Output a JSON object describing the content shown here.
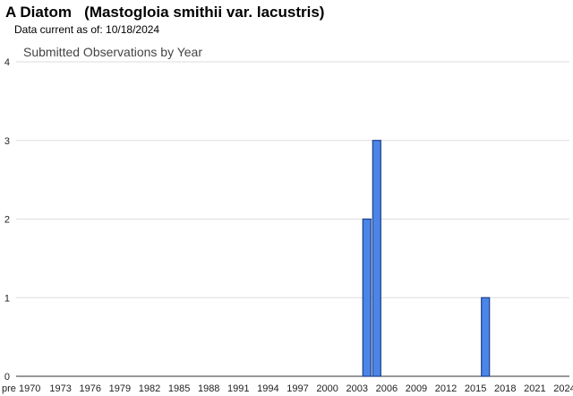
{
  "header": {
    "title": "A Diatom   (Mastogloia smithii var. lacustris)",
    "subtitle": "Data current as of: 10/18/2024"
  },
  "chart_data": {
    "type": "bar",
    "title": "Submitted Observations by Year",
    "xlabel": "",
    "ylabel": "",
    "ylim": [
      0,
      4
    ],
    "y_ticks": [
      0,
      1,
      2,
      3,
      4
    ],
    "grid": true,
    "categories": [
      "pre 1970",
      "1970",
      "1971",
      "1972",
      "1973",
      "1974",
      "1975",
      "1976",
      "1977",
      "1978",
      "1979",
      "1980",
      "1981",
      "1982",
      "1983",
      "1984",
      "1985",
      "1986",
      "1987",
      "1988",
      "1989",
      "1990",
      "1991",
      "1992",
      "1993",
      "1994",
      "1995",
      "1996",
      "1997",
      "1998",
      "1999",
      "2000",
      "2001",
      "2002",
      "2003",
      "2004",
      "2005",
      "2006",
      "2007",
      "2008",
      "2009",
      "2010",
      "2011",
      "2012",
      "2013",
      "2014",
      "2015",
      "2016",
      "2017",
      "2018",
      "2019",
      "2020",
      "2021",
      "2022",
      "2023",
      "2024"
    ],
    "x_tick_labels": [
      "pre 1970",
      "1973",
      "1976",
      "1979",
      "1982",
      "1985",
      "1988",
      "1991",
      "1994",
      "1997",
      "2000",
      "2003",
      "2006",
      "2009",
      "2012",
      "2015",
      "2018",
      "2021",
      "2024"
    ],
    "values": [
      0,
      0,
      0,
      0,
      0,
      0,
      0,
      0,
      0,
      0,
      0,
      0,
      0,
      0,
      0,
      0,
      0,
      0,
      0,
      0,
      0,
      0,
      0,
      0,
      0,
      0,
      0,
      0,
      0,
      0,
      0,
      0,
      0,
      0,
      0,
      2,
      3,
      0,
      0,
      0,
      0,
      0,
      0,
      0,
      0,
      0,
      0,
      1,
      0,
      0,
      0,
      0,
      0,
      0,
      0,
      0
    ],
    "bar_color": "#4a86e8"
  }
}
